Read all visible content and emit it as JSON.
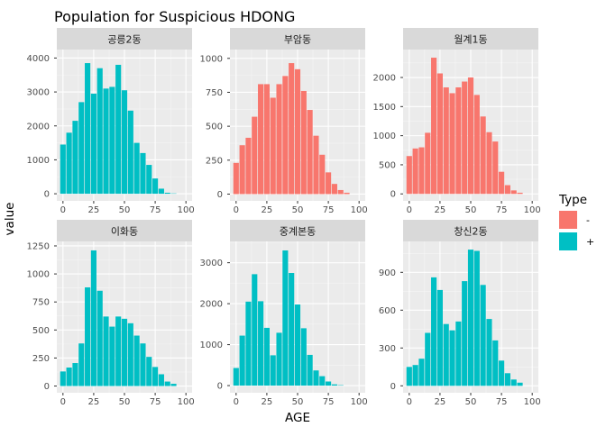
{
  "chart_data": {
    "type": "bar",
    "title": "Population for Suspicious HDONG",
    "xlabel": "AGE",
    "ylabel": "value",
    "legend": {
      "title": "Type",
      "placement": "right",
      "entries": [
        {
          "label": "-",
          "color": "#F8766D"
        },
        {
          "label": "+",
          "color": "#00BFC4"
        }
      ]
    },
    "grid": true,
    "x": [
      0,
      5,
      10,
      15,
      20,
      25,
      30,
      35,
      40,
      45,
      50,
      55,
      60,
      65,
      70,
      75,
      80,
      85,
      90,
      95,
      100
    ],
    "xticks": [
      0,
      25,
      50,
      75,
      100
    ],
    "xlim": [
      -5,
      105
    ],
    "panels": [
      {
        "name": "공릉2동",
        "type": "+",
        "color": "#00BFC4",
        "ylim": [
          -210,
          4250
        ],
        "yticks": [
          0,
          1000,
          2000,
          3000,
          4000
        ],
        "values": [
          1450,
          1800,
          2150,
          2700,
          3850,
          2950,
          3700,
          3100,
          3150,
          3800,
          3050,
          2450,
          1500,
          1200,
          850,
          450,
          150,
          30,
          10,
          0,
          0
        ]
      },
      {
        "name": "부암동",
        "type": "-",
        "color": "#F8766D",
        "ylim": [
          -50,
          1065
        ],
        "yticks": [
          0,
          250,
          500,
          750,
          1000
        ],
        "values": [
          230,
          360,
          415,
          570,
          810,
          810,
          710,
          810,
          870,
          965,
          920,
          760,
          620,
          430,
          290,
          160,
          75,
          30,
          10,
          0,
          0
        ]
      },
      {
        "name": "월계1동",
        "type": "-",
        "color": "#F8766D",
        "ylim": [
          -120,
          2480
        ],
        "yticks": [
          0,
          500,
          1000,
          1500,
          2000
        ],
        "values": [
          650,
          780,
          800,
          1050,
          2340,
          2070,
          1830,
          1730,
          1830,
          1930,
          2000,
          1700,
          1330,
          1060,
          900,
          380,
          150,
          60,
          20,
          0,
          0
        ]
      },
      {
        "name": "이화동",
        "type": "+",
        "color": "#00BFC4",
        "ylim": [
          -60,
          1290
        ],
        "yticks": [
          0,
          250,
          500,
          750,
          1000,
          1250
        ],
        "values": [
          130,
          165,
          205,
          380,
          880,
          1210,
          850,
          620,
          530,
          620,
          600,
          560,
          450,
          380,
          260,
          170,
          105,
          40,
          20,
          0,
          0
        ]
      },
      {
        "name": "중계본동",
        "type": "+",
        "color": "#00BFC4",
        "ylim": [
          -175,
          3520
        ],
        "yticks": [
          0,
          1000,
          2000,
          3000
        ],
        "values": [
          430,
          1220,
          2050,
          2720,
          2060,
          1410,
          740,
          1290,
          3300,
          2750,
          1980,
          1400,
          750,
          370,
          230,
          100,
          30,
          10,
          0,
          0,
          0
        ]
      },
      {
        "name": "창신2동",
        "type": "+",
        "color": "#00BFC4",
        "ylim": [
          -55,
          1145
        ],
        "yticks": [
          0,
          300,
          600,
          900
        ],
        "values": [
          150,
          165,
          215,
          420,
          860,
          760,
          490,
          440,
          510,
          830,
          1080,
          1070,
          800,
          530,
          360,
          200,
          100,
          50,
          25,
          0,
          0
        ]
      }
    ]
  }
}
